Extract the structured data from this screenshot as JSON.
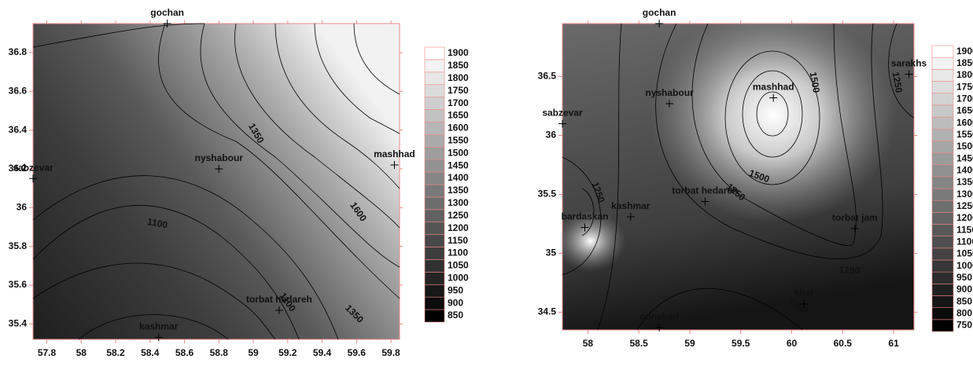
{
  "chart_data": [
    {
      "type": "contour",
      "xlim": [
        57.72,
        59.85
      ],
      "ylim": [
        35.32,
        36.95
      ],
      "xticks": [
        57.8,
        58,
        58.2,
        58.4,
        58.6,
        58.8,
        59,
        59.2,
        59.4,
        59.6,
        59.8
      ],
      "yticks": [
        35.4,
        35.6,
        35.8,
        36,
        36.2,
        36.4,
        36.6,
        36.8
      ],
      "levels": [
        850,
        900,
        950,
        1000,
        1050,
        1100,
        1150,
        1200,
        1250,
        1300,
        1350,
        1400,
        1450,
        1500,
        1550,
        1600,
        1650,
        1700,
        1750,
        1800,
        1850,
        1900
      ],
      "contour_labels": [
        1350,
        1100,
        1600,
        1100,
        1350
      ],
      "stations": [
        {
          "name": "gochan",
          "x": 58.5,
          "y": 36.95
        },
        {
          "name": "sabzevar",
          "x": 57.72,
          "y": 36.15
        },
        {
          "name": "nyshabour",
          "x": 58.8,
          "y": 36.2
        },
        {
          "name": "mashhad",
          "x": 59.82,
          "y": 36.22
        },
        {
          "name": "kashmar",
          "x": 58.45,
          "y": 35.33
        },
        {
          "name": "torbat hedareh",
          "x": 59.15,
          "y": 35.47
        }
      ]
    },
    {
      "type": "contour",
      "xlim": [
        57.75,
        61.2
      ],
      "ylim": [
        34.35,
        36.95
      ],
      "xticks": [
        58,
        58.5,
        59,
        59.5,
        60,
        60.5,
        61
      ],
      "yticks": [
        34.5,
        35,
        35.5,
        36,
        36.5
      ],
      "levels": [
        750,
        800,
        850,
        900,
        950,
        1000,
        1050,
        1100,
        1150,
        1200,
        1250,
        1300,
        1350,
        1400,
        1450,
        1500,
        1550,
        1600,
        1650,
        1700,
        1750,
        1800,
        1850,
        1900
      ],
      "contour_labels": [
        1500,
        1250,
        1500,
        1250,
        1250,
        1250,
        1000
      ],
      "stations": [
        {
          "name": "gochan",
          "x": 58.7,
          "y": 36.95
        },
        {
          "name": "sabzevar",
          "x": 57.75,
          "y": 36.1
        },
        {
          "name": "nyshabour",
          "x": 58.8,
          "y": 36.27
        },
        {
          "name": "mashhad",
          "x": 59.82,
          "y": 36.32
        },
        {
          "name": "sarakhs",
          "x": 61.15,
          "y": 36.52
        },
        {
          "name": "kashmar",
          "x": 58.42,
          "y": 35.31
        },
        {
          "name": "torbat hedareh",
          "x": 59.15,
          "y": 35.44
        },
        {
          "name": "bardaskan",
          "x": 57.97,
          "y": 35.22
        },
        {
          "name": "torbat jam",
          "x": 60.62,
          "y": 35.21
        },
        {
          "name": "khaf",
          "x": 60.12,
          "y": 34.57
        },
        {
          "name": "gonabad",
          "x": 58.7,
          "y": 34.37
        }
      ]
    }
  ]
}
